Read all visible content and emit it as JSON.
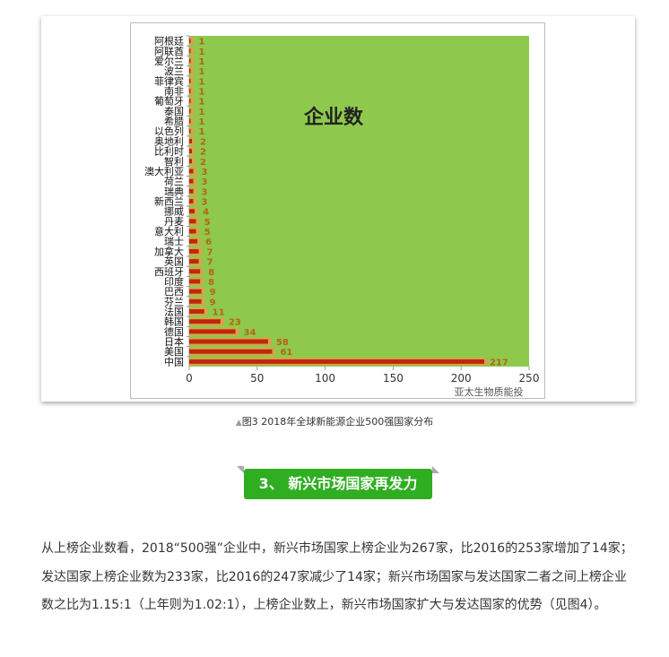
{
  "chart_data": {
    "type": "bar",
    "orientation": "horizontal",
    "title": "企业数",
    "categories": [
      "阿根廷",
      "阿联酋",
      "爱尔兰",
      "波兰",
      "菲律宾",
      "南非",
      "葡萄牙",
      "泰国",
      "希腊",
      "以色列",
      "奥地利",
      "比利时",
      "智利",
      "澳大利亚",
      "荷兰",
      "瑞典",
      "新西兰",
      "挪威",
      "丹麦",
      "意大利",
      "瑞士",
      "加拿大",
      "英国",
      "西班牙",
      "印度",
      "巴西",
      "芬兰",
      "法国",
      "韩国",
      "德国",
      "日本",
      "美国",
      "中国"
    ],
    "values": [
      1,
      1,
      1,
      1,
      1,
      1,
      1,
      1,
      1,
      1,
      2,
      2,
      2,
      3,
      3,
      3,
      3,
      4,
      5,
      5,
      6,
      7,
      7,
      8,
      8,
      9,
      9,
      11,
      23,
      34,
      58,
      61,
      217
    ],
    "xlim": [
      0,
      250
    ],
    "xticks": [
      "0",
      "50",
      "100",
      "150",
      "200",
      "250"
    ],
    "grid": false,
    "colors": {
      "plot_bg": "#8ec94d",
      "bar": "#c0260a",
      "band": "#d2a64a",
      "label": "#b5650e"
    },
    "watermark": "亚太生物质能投"
  },
  "caption": "图3 2018年全球新能源企业500强国家分布",
  "section_heading": "3、 新兴市场国家再发力",
  "paragraph": "从上榜企业数看，2018“500强”企业中，新兴市场国家上榜企业为267家，比2016的253家增加了14家；发达国家上榜企业数为233家，比2016的247家减少了14家；新兴市场国家与发达国家二者之间上榜企业数之比为1.15:1（上年则为1.02:1），上榜企业数上，新兴市场国家扩大与发达国家的优势（见图4）。"
}
